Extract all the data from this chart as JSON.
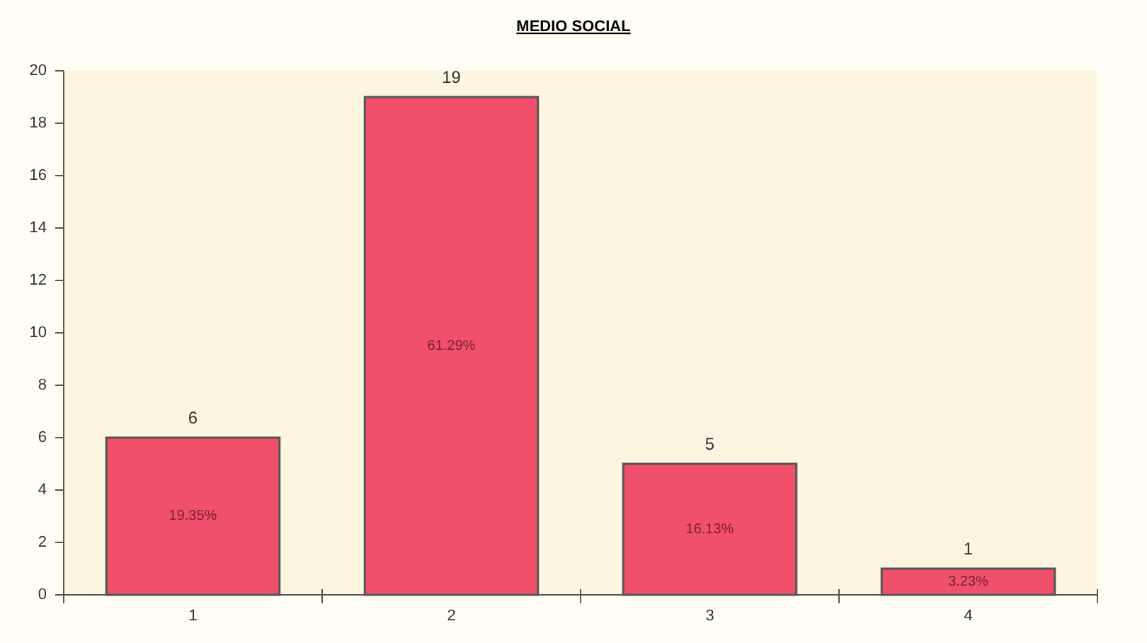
{
  "chart_data": {
    "type": "bar",
    "title": "MEDIO SOCIAL",
    "categories": [
      "1",
      "2",
      "3",
      "4"
    ],
    "values": [
      6,
      19,
      5,
      1
    ],
    "color": "#f0506a",
    "data_labels": true,
    "ylim": [
      0,
      20
    ],
    "yticks": [
      0,
      2,
      4,
      6,
      8,
      10,
      12,
      14,
      16,
      18,
      20
    ],
    "grid": false,
    "annotations": [
      "19.35%",
      "61.29%",
      "16.13%",
      "3.23%"
    ]
  }
}
